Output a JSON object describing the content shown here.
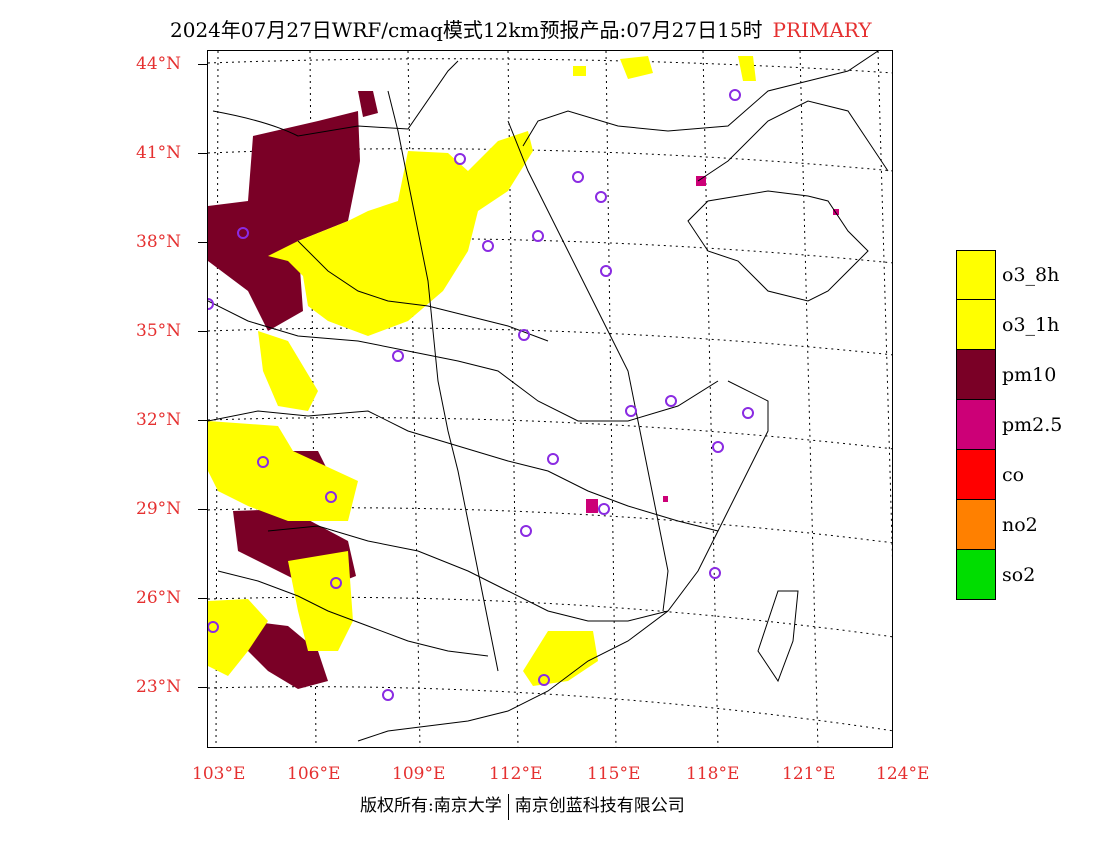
{
  "title": {
    "main": "2024年07月27日WRF/cmaq模式12km预报产品:07月27日15时",
    "tag": "PRIMARY",
    "tag_color": "#e53030"
  },
  "axes": {
    "lat_labels": [
      "44°N",
      "41°N",
      "38°N",
      "35°N",
      "32°N",
      "29°N",
      "26°N",
      "23°N"
    ],
    "lon_labels": [
      "103°E",
      "106°E",
      "109°E",
      "112°E",
      "115°E",
      "118°E",
      "121°E",
      "124°E"
    ],
    "label_color": "#e53030"
  },
  "legend": {
    "items": [
      {
        "label": "o3_8h",
        "color": "#ffff00"
      },
      {
        "label": "o3_1h",
        "color": "#ffff00"
      },
      {
        "label": "pm10",
        "color": "#7a0026"
      },
      {
        "label": "pm2.5",
        "color": "#cc0077"
      },
      {
        "label": "co",
        "color": "#ff0000"
      },
      {
        "label": "no2",
        "color": "#ff8000"
      },
      {
        "label": "so2",
        "color": "#00dd00"
      }
    ]
  },
  "station_marker_color": "#8a2be2",
  "footer": {
    "left": "版权所有:南京大学",
    "right": "南京创蓝科技有限公司"
  }
}
